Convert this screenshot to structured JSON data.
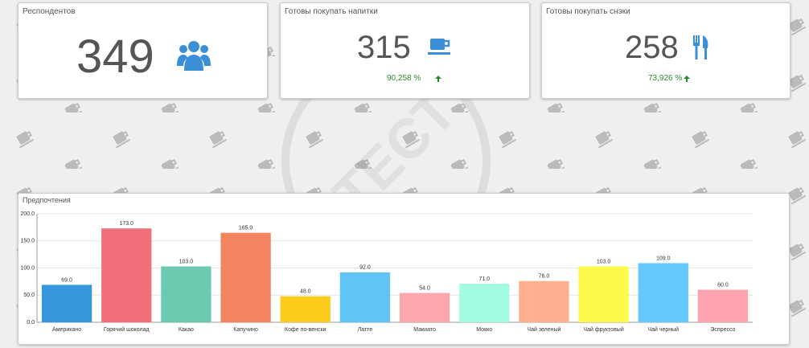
{
  "cards": [
    {
      "title": "Респондентов",
      "value": "349"
    },
    {
      "title": "Готовы покупать напитки",
      "value": "315",
      "change": "90,258 %"
    },
    {
      "title": "Готовы покупать снэки",
      "value": "258",
      "change": "73,926 %"
    }
  ],
  "watermark": "ТЕСТ",
  "chart_data": {
    "type": "bar",
    "title": "Предпочтения",
    "categories": [
      "Американо",
      "Горячий шоколад",
      "Какао",
      "Капучино",
      "Кофе по-венски",
      "Латте",
      "Макиато",
      "Мокко",
      "Чай зеленый",
      "Чай фруктовый",
      "Чай черный",
      "Эспрессо"
    ],
    "values": [
      69,
      173,
      103,
      165,
      48,
      92,
      54,
      71,
      76,
      103,
      109,
      60
    ],
    "value_labels": [
      "69.0",
      "173.0",
      "103.0",
      "165.0",
      "48.0",
      "92.0",
      "54.0",
      "71.0",
      "76.0",
      "103.0",
      "109.0",
      "60.0"
    ],
    "colors": [
      "#3498db",
      "#f06f7a",
      "#6ccab0",
      "#f28560",
      "#fccb1b",
      "#62c3f5",
      "#fca6ae",
      "#a3fbe2",
      "#feb08e",
      "#fefa4c",
      "#66c8fb",
      "#fea4ae"
    ],
    "ylim": [
      0,
      200
    ],
    "yticks": [
      {
        "value": 0,
        "label": "0.0"
      },
      {
        "value": 50,
        "label": "50.0"
      },
      {
        "value": 100,
        "label": "100.0"
      },
      {
        "value": 150,
        "label": "150.0"
      },
      {
        "value": 200,
        "label": "200.0"
      }
    ],
    "grid": true
  }
}
